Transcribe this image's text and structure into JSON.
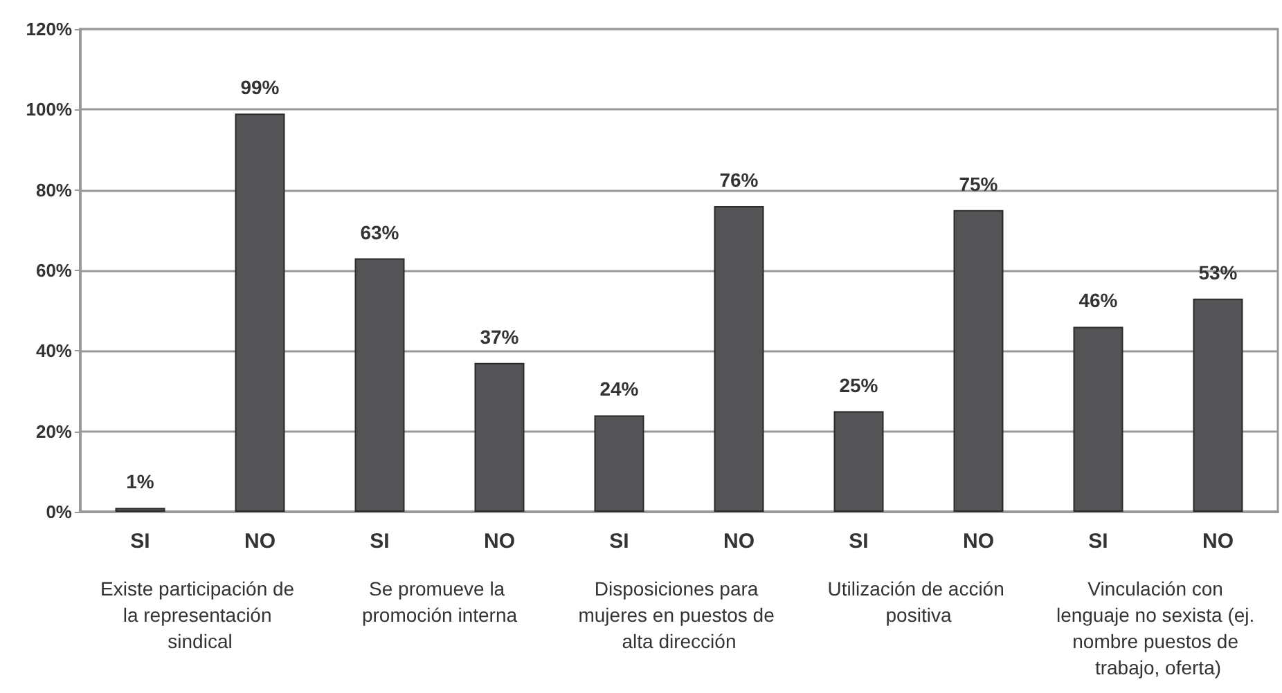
{
  "chart_data": {
    "type": "bar",
    "categories": [
      "SI",
      "NO",
      "SI",
      "NO",
      "SI",
      "NO",
      "SI",
      "NO",
      "SI",
      "NO"
    ],
    "values": [
      1,
      99,
      63,
      37,
      24,
      76,
      25,
      75,
      46,
      53
    ],
    "value_labels": [
      "1%",
      "99%",
      "63%",
      "37%",
      "24%",
      "76%",
      "25%",
      "75%",
      "46%",
      "53%"
    ],
    "color": "#545457",
    "ylim": [
      0,
      120
    ],
    "yticks": [
      {
        "value": 0,
        "label": "0%"
      },
      {
        "value": 20,
        "label": "20%"
      },
      {
        "value": 40,
        "label": "40%"
      },
      {
        "value": 60,
        "label": "60%"
      },
      {
        "value": 80,
        "label": "80%"
      },
      {
        "value": 100,
        "label": "100%"
      },
      {
        "value": 120,
        "label": "120%"
      }
    ],
    "grid": "y",
    "annotations": [
      "Existe participación de la representación sindical",
      "Se promueve la promoción interna",
      "Disposiciones para mujeres en puestos de alta dirección",
      "Utilización de acción positiva",
      "Vinculación con lenguaje no sexista (ej. nombre puestos de trabajo, oferta)"
    ]
  }
}
